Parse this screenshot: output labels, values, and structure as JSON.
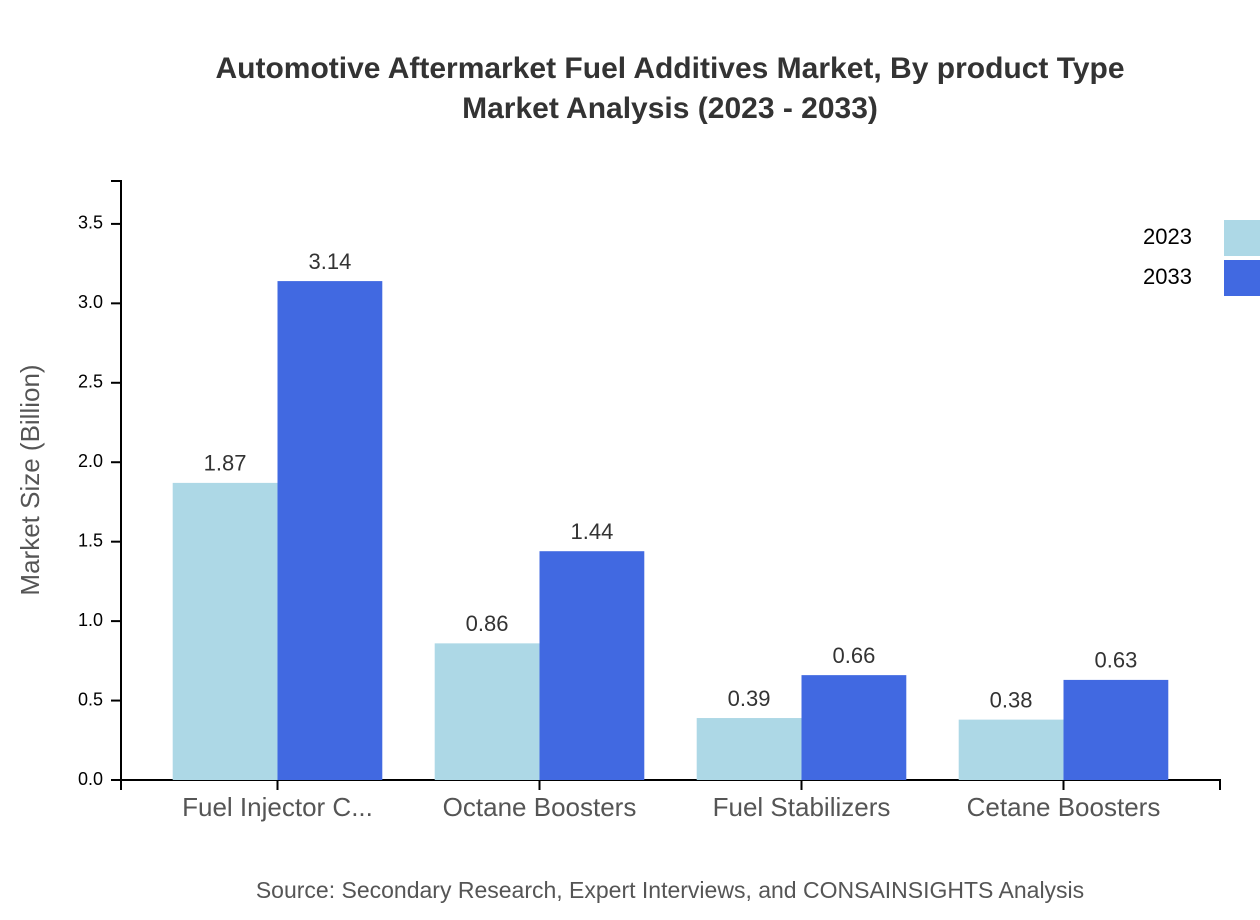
{
  "chart_data": {
    "type": "bar",
    "title": [
      "Automotive Aftermarket Fuel Additives Market, By product Type",
      "Market Analysis (2023 - 2033)"
    ],
    "y_label": "Market Size (Billion)",
    "source": "Source: Secondary Research, Expert Interviews, and CONSAINSIGHTS Analysis",
    "categories": [
      "Fuel Injector C...",
      "Octane Boosters",
      "Fuel Stabilizers",
      "Cetane Boosters"
    ],
    "series": [
      {
        "name": "2023",
        "color": "#add8e6",
        "values": [
          1.87,
          0.86,
          0.39,
          0.38
        ]
      },
      {
        "name": "2033",
        "color": "#4169e1",
        "values": [
          3.14,
          1.44,
          0.66,
          0.63
        ]
      }
    ],
    "ylim": [
      0,
      3.77
    ],
    "yticks": [
      {
        "value": 0,
        "label": "0.0"
      },
      0.5,
      {
        "value": 1,
        "label": "1.0"
      },
      1.5,
      {
        "value": 2,
        "label": "2.0"
      },
      2.5,
      {
        "value": 3,
        "label": "3.0"
      },
      3.5
    ]
  }
}
